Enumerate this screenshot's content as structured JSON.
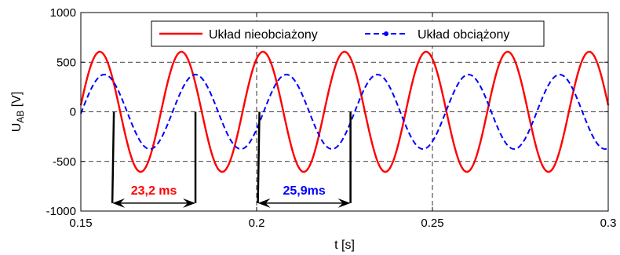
{
  "chart_data": {
    "type": "line",
    "xlabel": "t [s]",
    "ylabel_main": "U",
    "ylabel_sub": "AB",
    "ylabel_unit": " [V]",
    "xlim": [
      0.15,
      0.3
    ],
    "ylim": [
      -1000,
      1000
    ],
    "grid": true,
    "xticks": [
      0.15,
      0.2,
      0.25,
      0.3
    ],
    "xtick_labels": [
      "0.15",
      "0.2",
      "0.25",
      "0.3"
    ],
    "yticks": [
      -1000,
      -500,
      0,
      500,
      1000
    ],
    "ytick_labels": [
      "-1000",
      "-500",
      "0",
      "500",
      "1000"
    ],
    "legend_position": "top-right",
    "series": [
      {
        "name": "Układ nieobciażony",
        "color": "#ff0000",
        "style": "solid",
        "amplitude": 605,
        "period": 0.0232,
        "zero_crossing_up": 0.1496,
        "samples": [
          {
            "x": 0.15,
            "y": 210
          },
          {
            "x": 0.1554,
            "y": 605
          },
          {
            "x": 0.1612,
            "y": 0
          },
          {
            "x": 0.167,
            "y": -605
          },
          {
            "x": 0.1728,
            "y": 0
          },
          {
            "x": 0.1786,
            "y": 605
          },
          {
            "x": 0.1844,
            "y": 0
          },
          {
            "x": 0.1902,
            "y": -605
          },
          {
            "x": 0.196,
            "y": 0
          },
          {
            "x": 0.2018,
            "y": 605
          },
          {
            "x": 0.2076,
            "y": 0
          },
          {
            "x": 0.2134,
            "y": -605
          },
          {
            "x": 0.2192,
            "y": 0
          },
          {
            "x": 0.225,
            "y": 605
          },
          {
            "x": 0.2308,
            "y": 0
          },
          {
            "x": 0.2366,
            "y": -605
          },
          {
            "x": 0.2424,
            "y": 0
          },
          {
            "x": 0.2482,
            "y": 605
          },
          {
            "x": 0.254,
            "y": 0
          },
          {
            "x": 0.2598,
            "y": -605
          },
          {
            "x": 0.2656,
            "y": 0
          },
          {
            "x": 0.2714,
            "y": 605
          },
          {
            "x": 0.2772,
            "y": 0
          },
          {
            "x": 0.283,
            "y": -605
          },
          {
            "x": 0.2888,
            "y": 0
          },
          {
            "x": 0.2946,
            "y": 605
          },
          {
            "x": 0.3,
            "y": -100
          }
        ]
      },
      {
        "name": "Układ obciążony",
        "color": "#0000ff",
        "style": "dashed",
        "marker": "dot",
        "amplitude": 375,
        "period": 0.0259,
        "zero_crossing_up": 0.1502,
        "samples": [
          {
            "x": 0.15,
            "y": 20
          },
          {
            "x": 0.1567,
            "y": 375
          },
          {
            "x": 0.1632,
            "y": 0
          },
          {
            "x": 0.1696,
            "y": -375
          },
          {
            "x": 0.1761,
            "y": 0
          },
          {
            "x": 0.1826,
            "y": 375
          },
          {
            "x": 0.1891,
            "y": 0
          },
          {
            "x": 0.1955,
            "y": -375
          },
          {
            "x": 0.202,
            "y": 0
          },
          {
            "x": 0.2085,
            "y": 375
          },
          {
            "x": 0.215,
            "y": 0
          },
          {
            "x": 0.2214,
            "y": -375
          },
          {
            "x": 0.2279,
            "y": 0
          },
          {
            "x": 0.2344,
            "y": 375
          },
          {
            "x": 0.2409,
            "y": 0
          },
          {
            "x": 0.2473,
            "y": -375
          },
          {
            "x": 0.2538,
            "y": 0
          },
          {
            "x": 0.2603,
            "y": 375
          },
          {
            "x": 0.2668,
            "y": 0
          },
          {
            "x": 0.2732,
            "y": -375
          },
          {
            "x": 0.2797,
            "y": 0
          },
          {
            "x": 0.2862,
            "y": 375
          },
          {
            "x": 0.2927,
            "y": 0
          },
          {
            "x": 0.2991,
            "y": -375
          },
          {
            "x": 0.3,
            "y": -360
          }
        ]
      }
    ],
    "annotations": [
      {
        "text": "23,2 ms",
        "color": "#ff0000",
        "x_start": 0.1594,
        "x_end": 0.1826,
        "y_arrow": -920,
        "y_marker_top": 0
      },
      {
        "text": "25,9ms",
        "color": "#0000ff",
        "x_start": 0.2008,
        "x_end": 0.2267,
        "y_arrow": -920,
        "y_marker_top": 0
      }
    ]
  }
}
